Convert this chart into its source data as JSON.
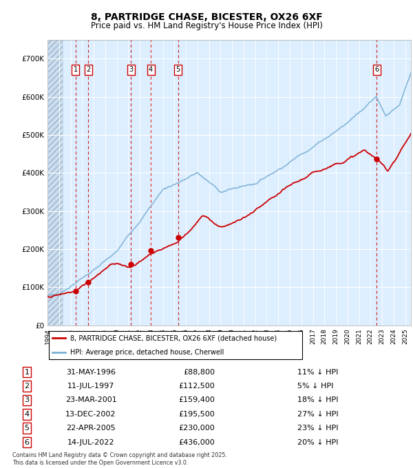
{
  "title": "8, PARTRIDGE CHASE, BICESTER, OX26 6XF",
  "subtitle": "Price paid vs. HM Land Registry's House Price Index (HPI)",
  "ylim": [
    0,
    750000
  ],
  "yticks": [
    0,
    100000,
    200000,
    300000,
    400000,
    500000,
    600000,
    700000
  ],
  "ytick_labels": [
    "£0",
    "£100K",
    "£200K",
    "£300K",
    "£400K",
    "£500K",
    "£600K",
    "£700K"
  ],
  "hpi_color": "#7ab0d4",
  "price_color": "#cc0000",
  "vline_color": "#cc0000",
  "plot_bg_color": "#ddeeff",
  "grid_color": "#ffffff",
  "legend_entries": [
    "8, PARTRIDGE CHASE, BICESTER, OX26 6XF (detached house)",
    "HPI: Average price, detached house, Cherwell"
  ],
  "transactions": [
    {
      "num": 1,
      "date_str": "31-MAY-1996",
      "year": 1996.42,
      "price": 88800,
      "pct": "11%",
      "label": "1"
    },
    {
      "num": 2,
      "date_str": "11-JUL-1997",
      "year": 1997.53,
      "price": 112500,
      "pct": "5%",
      "label": "2"
    },
    {
      "num": 3,
      "date_str": "23-MAR-2001",
      "year": 2001.23,
      "price": 159400,
      "pct": "18%",
      "label": "3"
    },
    {
      "num": 4,
      "date_str": "13-DEC-2002",
      "year": 2002.95,
      "price": 195500,
      "pct": "27%",
      "label": "4"
    },
    {
      "num": 5,
      "date_str": "22-APR-2005",
      "year": 2005.31,
      "price": 230000,
      "pct": "23%",
      "label": "5"
    },
    {
      "num": 6,
      "date_str": "14-JUL-2022",
      "year": 2022.54,
      "price": 436000,
      "pct": "20%",
      "label": "6"
    }
  ],
  "footnote": "Contains HM Land Registry data © Crown copyright and database right 2025.\nThis data is licensed under the Open Government Licence v3.0.",
  "xlim_start": 1994.0,
  "xlim_end": 2025.5,
  "hatch_end": 1995.3
}
